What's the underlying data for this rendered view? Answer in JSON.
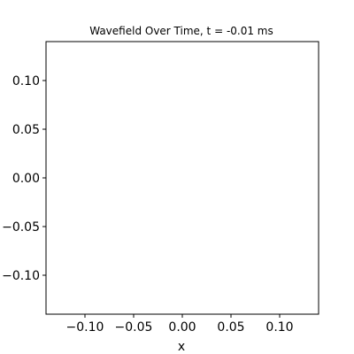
{
  "chart_data": {
    "type": "line",
    "title": "Wavefield Over Time, t = -0.01 ms",
    "xlabel": "x",
    "ylabel": "",
    "xlim": [
      -0.14,
      0.14
    ],
    "ylim": [
      -0.14,
      0.14
    ],
    "xticks": [
      -0.1,
      -0.05,
      0.0,
      0.05,
      0.1
    ],
    "yticks": [
      -0.1,
      -0.05,
      0.0,
      0.05,
      0.1
    ],
    "xtick_labels": [
      "−0.10",
      "−0.05",
      "0.00",
      "0.05",
      "0.10"
    ],
    "ytick_labels": [
      "−0.10",
      "−0.05",
      "0.00",
      "0.05",
      "0.10"
    ],
    "grid": false,
    "series": []
  }
}
